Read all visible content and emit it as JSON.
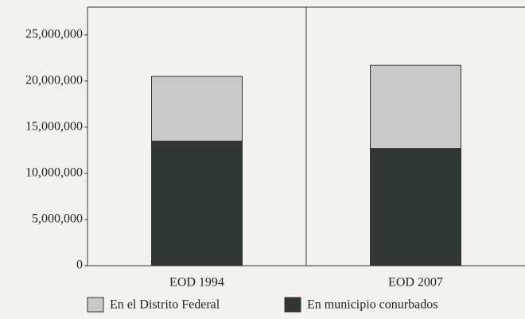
{
  "chart_data": {
    "type": "stacked_bar",
    "categories": [
      "EOD 1994",
      "EOD 2007"
    ],
    "series": [
      {
        "name": "En el Distrito Federal",
        "color": "#c9c9c7",
        "values": [
          7000000,
          9000000
        ]
      },
      {
        "name": "En municipio conurbados",
        "color": "#2f3833",
        "values": [
          13500000,
          12700000
        ]
      }
    ],
    "ylim": [
      0,
      28000000
    ],
    "yticks": [
      0,
      {
        "value": 5000000,
        "label": "5,000,000"
      },
      {
        "value": 10000000,
        "label": "10,000,000"
      },
      {
        "value": 15000000,
        "label": "15,000,000"
      },
      {
        "value": 20000000,
        "label": "20,000,000"
      },
      {
        "value": 25000000,
        "label": "25,000,000"
      }
    ],
    "legend": "bottom"
  }
}
